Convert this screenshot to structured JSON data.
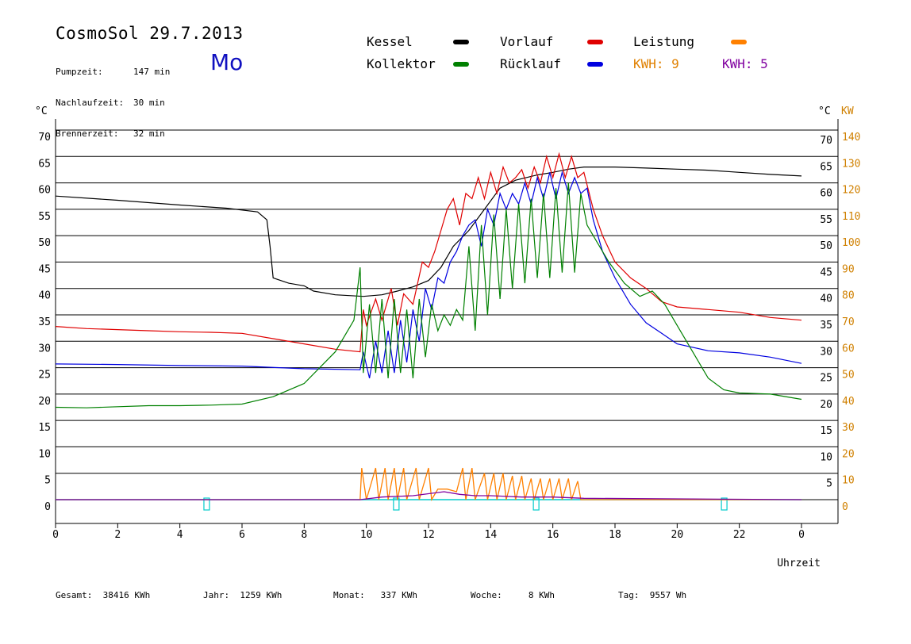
{
  "header": {
    "title": "CosmoSol 29.7.2013",
    "day": "Mo",
    "stats": [
      {
        "label": "Pumpzeit:",
        "value": "147 min"
      },
      {
        "label": "Nachlaufzeit:",
        "value": "30 min"
      },
      {
        "label": "Brennerzeit:",
        "value": "32 min"
      }
    ]
  },
  "legend": {
    "kessel": {
      "label": "Kessel",
      "color": "#000000"
    },
    "vorlauf": {
      "label": "Vorlauf",
      "color": "#e00000"
    },
    "leistung": {
      "label": "Leistung",
      "color": "#ff8000"
    },
    "kollektor": {
      "label": "Kollektor",
      "color": "#008000"
    },
    "ruecklauf": {
      "label": "Rücklauf",
      "color": "#0000e0"
    },
    "kwh1": {
      "label": "KWH: 9",
      "color": "#e08000"
    },
    "kwh2": {
      "label": "KWH: 5",
      "color": "#8000a0"
    }
  },
  "footer": [
    {
      "label": "Gesamt:",
      "value": "38416 KWh"
    },
    {
      "label": "Jahr:",
      "value": "1259 KWh"
    },
    {
      "label": "Monat:",
      "value": "337 KWh"
    },
    {
      "label": "Woche:",
      "value": "8 KWh"
    },
    {
      "label": "Tag:",
      "value": "9557 Wh"
    }
  ],
  "chart_data": {
    "type": "line",
    "xlabel": "Uhrzeit",
    "ylabel_left": "°C",
    "ylabel_right_temp": "°C",
    "ylabel_right_power": "KW",
    "xlim": [
      0,
      24
    ],
    "ylim": [
      0,
      70
    ],
    "ylim_power": [
      0,
      140
    ],
    "x_ticks": [
      "0",
      "2",
      "4",
      "6",
      "8",
      "10",
      "12",
      "14",
      "16",
      "18",
      "20",
      "22",
      "0"
    ],
    "y_ticks": [
      0,
      5,
      10,
      15,
      20,
      25,
      30,
      35,
      40,
      45,
      50,
      55,
      60,
      65,
      70
    ],
    "y_ticks_right": [
      "",
      "5",
      "10",
      "15",
      "20",
      "25",
      "30",
      "35",
      "40",
      "45",
      "50",
      "55",
      "60",
      "65",
      "70"
    ],
    "power_ticks": [
      0,
      10,
      20,
      30,
      40,
      50,
      60,
      70,
      80,
      90,
      100,
      110,
      120,
      130,
      140
    ],
    "grid": true,
    "series": [
      {
        "name": "Kessel",
        "color": "#000000",
        "points": [
          [
            0,
            57.5
          ],
          [
            2,
            56.7
          ],
          [
            4,
            55.8
          ],
          [
            5.5,
            55.2
          ],
          [
            6.5,
            54.5
          ],
          [
            6.8,
            53
          ],
          [
            6.9,
            48
          ],
          [
            7.0,
            42
          ],
          [
            7.5,
            41
          ],
          [
            8.0,
            40.5
          ],
          [
            8.3,
            39.5
          ],
          [
            9,
            38.8
          ],
          [
            9.9,
            38.5
          ],
          [
            10.5,
            38.8
          ],
          [
            11,
            39.5
          ],
          [
            11.5,
            40.3
          ],
          [
            12,
            41.5
          ],
          [
            12.4,
            44
          ],
          [
            12.8,
            48
          ],
          [
            13.3,
            51
          ],
          [
            13.8,
            55
          ],
          [
            14.3,
            59
          ],
          [
            14.8,
            60.5
          ],
          [
            15.5,
            61.5
          ],
          [
            16,
            62
          ],
          [
            16.5,
            62.6
          ],
          [
            17,
            63
          ],
          [
            18,
            63
          ],
          [
            19,
            62.8
          ],
          [
            20,
            62.6
          ],
          [
            21,
            62.4
          ],
          [
            22,
            62
          ],
          [
            23,
            61.6
          ],
          [
            24,
            61.3
          ]
        ]
      },
      {
        "name": "Vorlauf",
        "color": "#e00000",
        "points": [
          [
            0,
            32.8
          ],
          [
            1,
            32.4
          ],
          [
            2,
            32.2
          ],
          [
            3,
            32
          ],
          [
            4,
            31.8
          ],
          [
            5,
            31.7
          ],
          [
            6,
            31.5
          ],
          [
            7,
            30.5
          ],
          [
            8,
            29.5
          ],
          [
            9,
            28.5
          ],
          [
            9.8,
            28
          ],
          [
            9.9,
            36
          ],
          [
            10,
            33
          ],
          [
            10.3,
            38
          ],
          [
            10.5,
            34
          ],
          [
            10.8,
            40
          ],
          [
            11,
            33
          ],
          [
            11.2,
            39
          ],
          [
            11.5,
            37
          ],
          [
            11.8,
            45
          ],
          [
            12.0,
            44
          ],
          [
            12.2,
            47
          ],
          [
            12.4,
            51
          ],
          [
            12.6,
            55
          ],
          [
            12.8,
            57
          ],
          [
            13.0,
            52
          ],
          [
            13.2,
            58
          ],
          [
            13.4,
            57
          ],
          [
            13.6,
            61
          ],
          [
            13.8,
            57
          ],
          [
            14.0,
            62
          ],
          [
            14.2,
            58
          ],
          [
            14.4,
            63
          ],
          [
            14.6,
            60
          ],
          [
            14.8,
            61
          ],
          [
            15.0,
            62.5
          ],
          [
            15.2,
            59
          ],
          [
            15.4,
            63
          ],
          [
            15.6,
            60
          ],
          [
            15.8,
            65
          ],
          [
            16.0,
            61
          ],
          [
            16.2,
            65.5
          ],
          [
            16.4,
            61
          ],
          [
            16.6,
            65
          ],
          [
            16.8,
            61
          ],
          [
            17.0,
            62
          ],
          [
            17.3,
            55
          ],
          [
            17.6,
            50
          ],
          [
            18,
            45
          ],
          [
            18.5,
            42
          ],
          [
            19,
            40
          ],
          [
            19.5,
            37.5
          ],
          [
            20,
            36.5
          ],
          [
            21,
            36
          ],
          [
            22,
            35.5
          ],
          [
            23,
            34.5
          ],
          [
            24,
            34
          ]
        ]
      },
      {
        "name": "Rücklauf",
        "color": "#0000e0",
        "points": [
          [
            0,
            25.7
          ],
          [
            2,
            25.6
          ],
          [
            4,
            25.4
          ],
          [
            6,
            25.3
          ],
          [
            8,
            24.8
          ],
          [
            9.8,
            24.6
          ],
          [
            9.9,
            28
          ],
          [
            10.1,
            23
          ],
          [
            10.3,
            30
          ],
          [
            10.5,
            24
          ],
          [
            10.7,
            32
          ],
          [
            10.9,
            24
          ],
          [
            11.1,
            34
          ],
          [
            11.3,
            26
          ],
          [
            11.5,
            36
          ],
          [
            11.7,
            30
          ],
          [
            11.9,
            40
          ],
          [
            12.1,
            36
          ],
          [
            12.3,
            42
          ],
          [
            12.5,
            41
          ],
          [
            12.7,
            45
          ],
          [
            12.9,
            47
          ],
          [
            13.1,
            50
          ],
          [
            13.3,
            52
          ],
          [
            13.5,
            53
          ],
          [
            13.7,
            48
          ],
          [
            13.9,
            55
          ],
          [
            14.1,
            52
          ],
          [
            14.3,
            58
          ],
          [
            14.5,
            55
          ],
          [
            14.7,
            58
          ],
          [
            14.9,
            56
          ],
          [
            15.1,
            60
          ],
          [
            15.3,
            56
          ],
          [
            15.5,
            61
          ],
          [
            15.7,
            57
          ],
          [
            15.9,
            62
          ],
          [
            16.1,
            57
          ],
          [
            16.3,
            62
          ],
          [
            16.5,
            58
          ],
          [
            16.7,
            61
          ],
          [
            16.9,
            58
          ],
          [
            17.1,
            59
          ],
          [
            17.3,
            53
          ],
          [
            17.6,
            47
          ],
          [
            18,
            42
          ],
          [
            18.5,
            37
          ],
          [
            19,
            33.5
          ],
          [
            19.5,
            31.5
          ],
          [
            20,
            29.5
          ],
          [
            21,
            28.2
          ],
          [
            22,
            27.8
          ],
          [
            23,
            27
          ],
          [
            24,
            25.8
          ]
        ]
      },
      {
        "name": "Kollektor",
        "color": "#008000",
        "points": [
          [
            0,
            17.5
          ],
          [
            1,
            17.4
          ],
          [
            2,
            17.6
          ],
          [
            3,
            17.8
          ],
          [
            4,
            17.8
          ],
          [
            5,
            17.9
          ],
          [
            6,
            18.1
          ],
          [
            7,
            19.5
          ],
          [
            8,
            22
          ],
          [
            9,
            28
          ],
          [
            9.6,
            34
          ],
          [
            9.8,
            44
          ],
          [
            9.9,
            24
          ],
          [
            10.1,
            37
          ],
          [
            10.3,
            24
          ],
          [
            10.5,
            38
          ],
          [
            10.7,
            23
          ],
          [
            10.9,
            38
          ],
          [
            11.1,
            24
          ],
          [
            11.3,
            36
          ],
          [
            11.5,
            23
          ],
          [
            11.7,
            38
          ],
          [
            11.9,
            27
          ],
          [
            12.1,
            37
          ],
          [
            12.3,
            32
          ],
          [
            12.5,
            35
          ],
          [
            12.7,
            33
          ],
          [
            12.9,
            36
          ],
          [
            13.1,
            34
          ],
          [
            13.3,
            48
          ],
          [
            13.5,
            32
          ],
          [
            13.7,
            52
          ],
          [
            13.9,
            35
          ],
          [
            14.1,
            54
          ],
          [
            14.3,
            38
          ],
          [
            14.5,
            55
          ],
          [
            14.7,
            40
          ],
          [
            14.9,
            56
          ],
          [
            15.1,
            41
          ],
          [
            15.3,
            57
          ],
          [
            15.5,
            42
          ],
          [
            15.7,
            58
          ],
          [
            15.9,
            42
          ],
          [
            16.1,
            59
          ],
          [
            16.3,
            43
          ],
          [
            16.5,
            60
          ],
          [
            16.7,
            43
          ],
          [
            16.9,
            58
          ],
          [
            17.1,
            52
          ],
          [
            17.4,
            49
          ],
          [
            17.8,
            45
          ],
          [
            18.3,
            41
          ],
          [
            18.8,
            38.5
          ],
          [
            19.2,
            39.5
          ],
          [
            19.6,
            37
          ],
          [
            20,
            33
          ],
          [
            20.5,
            28
          ],
          [
            21,
            23
          ],
          [
            21.5,
            20.8
          ],
          [
            22,
            20.2
          ],
          [
            23,
            20
          ],
          [
            24,
            19
          ]
        ]
      }
    ],
    "power_series": [
      {
        "name": "Leistung",
        "color": "#ff8000",
        "points": [
          [
            0,
            0
          ],
          [
            9.8,
            0
          ],
          [
            9.85,
            12
          ],
          [
            10.0,
            0
          ],
          [
            10.3,
            12
          ],
          [
            10.4,
            0
          ],
          [
            10.6,
            12
          ],
          [
            10.7,
            0
          ],
          [
            10.9,
            12
          ],
          [
            11.0,
            0
          ],
          [
            11.2,
            12
          ],
          [
            11.3,
            0
          ],
          [
            11.6,
            12
          ],
          [
            11.7,
            0
          ],
          [
            12.0,
            12
          ],
          [
            12.1,
            0
          ],
          [
            12.3,
            4
          ],
          [
            12.6,
            4
          ],
          [
            12.9,
            3
          ],
          [
            13.1,
            12
          ],
          [
            13.2,
            0
          ],
          [
            13.4,
            12
          ],
          [
            13.5,
            0
          ],
          [
            13.8,
            10
          ],
          [
            13.9,
            0
          ],
          [
            14.1,
            10
          ],
          [
            14.2,
            0
          ],
          [
            14.4,
            10
          ],
          [
            14.5,
            0
          ],
          [
            14.7,
            9
          ],
          [
            14.8,
            0
          ],
          [
            15.0,
            9
          ],
          [
            15.1,
            0
          ],
          [
            15.3,
            8
          ],
          [
            15.4,
            0
          ],
          [
            15.6,
            8
          ],
          [
            15.7,
            0
          ],
          [
            15.9,
            8
          ],
          [
            16.0,
            0
          ],
          [
            16.2,
            8
          ],
          [
            16.3,
            0
          ],
          [
            16.5,
            8
          ],
          [
            16.6,
            0
          ],
          [
            16.8,
            7
          ],
          [
            16.9,
            0
          ],
          [
            24,
            0
          ]
        ]
      },
      {
        "name": "KWH",
        "color": "#8000a0",
        "points": [
          [
            0,
            0
          ],
          [
            9.8,
            0
          ],
          [
            10.5,
            1
          ],
          [
            11.5,
            1.5
          ],
          [
            12.5,
            3
          ],
          [
            13.0,
            2
          ],
          [
            13.5,
            1.5
          ],
          [
            14.0,
            1.5
          ],
          [
            15.0,
            1
          ],
          [
            16.0,
            1
          ],
          [
            17.0,
            0.5
          ],
          [
            24,
            0
          ]
        ]
      }
    ],
    "pump_markers": [
      4.85,
      10.95,
      15.45,
      21.5
    ]
  }
}
